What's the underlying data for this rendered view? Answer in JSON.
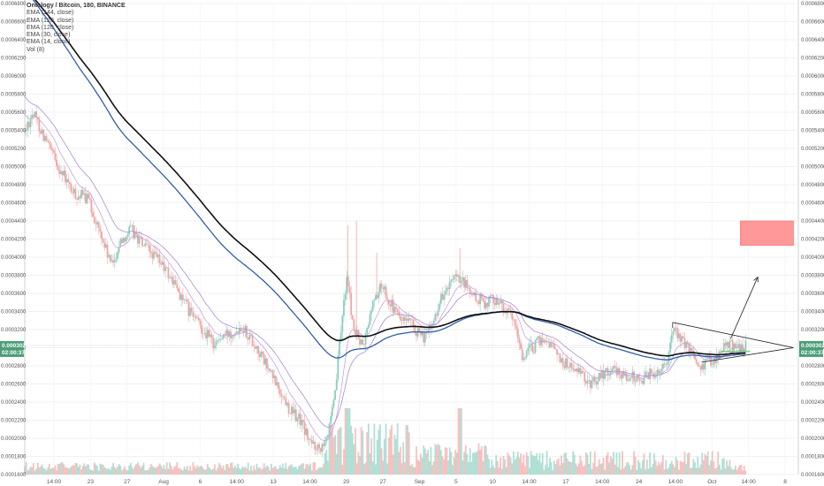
{
  "chart_data": {
    "type": "candlestick",
    "title": "Ontology / Bitcoin, 180, BINANCE",
    "indicators": [
      {
        "label": "EMA (144, close)",
        "color": "#111111"
      },
      {
        "label": "EMA (120, close)",
        "color": "#2f5fa7"
      },
      {
        "label": "EMA (120, close)",
        "color": "#2f5fa7"
      },
      {
        "label": "EMA (30, close)",
        "color": "#a98fd0"
      },
      {
        "label": "EMA (14, close)",
        "color": "#c9a3e2"
      },
      {
        "label": "Vol (8)",
        "color": "#26a69a"
      }
    ],
    "y_ticks": [
      "0.0006800",
      "0.0006600",
      "0.0006400",
      "0.0006200",
      "0.0006000",
      "0.0005800",
      "0.0005600",
      "0.0005400",
      "0.0005200",
      "0.0005000",
      "0.0004800",
      "0.0004600",
      "0.0004400",
      "0.0004200",
      "0.0004000",
      "0.0003800",
      "0.0003600",
      "0.0003400",
      "0.0003200",
      "0.0003000",
      "0.0002800",
      "0.0002600",
      "0.0002400",
      "0.0002200",
      "0.0002000",
      "0.0001800",
      "0.0001600"
    ],
    "ylim": [
      0.00016,
      0.00068
    ],
    "x_ticks": [
      "14:00",
      "23",
      "27",
      "Aug",
      "6",
      "14:00",
      "13",
      "14:00",
      "20",
      "27",
      "Sep",
      "5",
      "10",
      "14:00",
      "17",
      "14:00",
      "24",
      "14:00",
      "Oct",
      "14:00",
      "8"
    ],
    "current_price": "0.0003025",
    "countdown": "02:00:37",
    "price_path": [
      [
        0.0,
        0.000538
      ],
      [
        0.8,
        0.00056
      ],
      [
        1.5,
        0.000545
      ],
      [
        3.0,
        0.00051
      ],
      [
        5.0,
        0.00047
      ],
      [
        6.5,
        0.000465
      ],
      [
        8.0,
        0.00042
      ],
      [
        9.0,
        0.00039
      ],
      [
        10.0,
        0.00042
      ],
      [
        11.0,
        0.00043
      ],
      [
        12.5,
        0.00041
      ],
      [
        14.0,
        0.000395
      ],
      [
        15.5,
        0.00037
      ],
      [
        17.0,
        0.00034
      ],
      [
        18.5,
        0.00032
      ],
      [
        19.5,
        0.000305
      ],
      [
        21.0,
        0.000315
      ],
      [
        22.5,
        0.000325
      ],
      [
        24.0,
        0.0003
      ],
      [
        25.0,
        0.00028
      ],
      [
        26.5,
        0.00025
      ],
      [
        27.5,
        0.00023
      ],
      [
        28.5,
        0.00022
      ],
      [
        29.5,
        0.000195
      ],
      [
        30.5,
        0.00019
      ],
      [
        31.5,
        0.00021
      ],
      [
        32.0,
        0.00024
      ],
      [
        32.8,
        0.00033
      ],
      [
        33.3,
        0.00038
      ],
      [
        34.0,
        0.00032
      ],
      [
        35.0,
        0.0003
      ],
      [
        36.0,
        0.00035
      ],
      [
        37.0,
        0.00037
      ],
      [
        38.0,
        0.000345
      ],
      [
        39.0,
        0.00033
      ],
      [
        40.0,
        0.000325
      ],
      [
        41.0,
        0.00031
      ],
      [
        42.0,
        0.00032
      ],
      [
        43.0,
        0.000355
      ],
      [
        44.5,
        0.000375
      ],
      [
        45.5,
        0.00037
      ],
      [
        46.5,
        0.000355
      ],
      [
        47.5,
        0.00035
      ],
      [
        48.5,
        0.000355
      ],
      [
        49.5,
        0.000345
      ],
      [
        50.5,
        0.00033
      ],
      [
        51.5,
        0.00029
      ],
      [
        52.5,
        0.0003
      ],
      [
        53.5,
        0.00031
      ],
      [
        54.5,
        0.000305
      ],
      [
        55.5,
        0.000285
      ],
      [
        56.5,
        0.00028
      ],
      [
        57.5,
        0.00027
      ],
      [
        58.5,
        0.00026
      ],
      [
        59.5,
        0.00027
      ],
      [
        60.5,
        0.000275
      ],
      [
        61.5,
        0.000272
      ],
      [
        62.5,
        0.000268
      ],
      [
        63.5,
        0.000265
      ],
      [
        64.5,
        0.00027
      ],
      [
        65.5,
        0.000275
      ],
      [
        66.5,
        0.00029
      ],
      [
        67.0,
        0.00032
      ],
      [
        67.8,
        0.00031
      ],
      [
        68.5,
        0.0003
      ],
      [
        69.3,
        0.00029
      ],
      [
        70.0,
        0.00028
      ],
      [
        70.8,
        0.000285
      ],
      [
        71.5,
        0.00029
      ],
      [
        72.3,
        0.0003
      ],
      [
        73.0,
        0.000305
      ],
      [
        73.8,
        0.0003
      ],
      [
        74.6,
        0.000302
      ]
    ],
    "annotations": {
      "triangle_upper": [
        [
          67.0,
          0.000328
        ],
        [
          79.5,
          0.0003
        ]
      ],
      "triangle_lower": [
        [
          70.0,
          0.000284
        ],
        [
          79.5,
          0.0003
        ]
      ],
      "target_box": {
        "x0": 74.0,
        "x1": 79.5,
        "y0": 0.000413,
        "y1": 0.00044,
        "color": "#ff9999"
      },
      "arrow": {
        "from": [
          73.0,
          0.00031
        ],
        "to": [
          75.8,
          0.000378
        ]
      },
      "green_line": {
        "x0": 72.0,
        "x1": 75.0,
        "y": 0.000296,
        "color": "#6fd36f"
      }
    }
  }
}
